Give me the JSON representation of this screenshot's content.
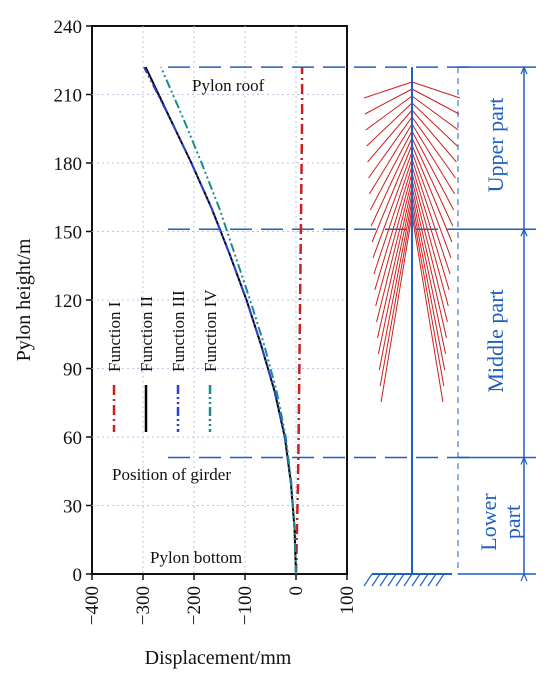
{
  "chart_data": {
    "type": "line",
    "xlabel": "Displacement/mm",
    "ylabel": "Pylon height/m",
    "xlim": [
      -400,
      100
    ],
    "ylim": [
      0,
      240
    ],
    "x_ticks": [
      "−400",
      "−300",
      "−200",
      "−100",
      "0",
      "100"
    ],
    "y_ticks": [
      "0",
      "30",
      "60",
      "90",
      "120",
      "150",
      "180",
      "210",
      "240"
    ],
    "x_tick_values": [
      -400,
      -300,
      -200,
      -100,
      0,
      100
    ],
    "y_tick_values": [
      0,
      30,
      60,
      90,
      120,
      150,
      180,
      210,
      240
    ],
    "grid": true,
    "legend_position": "left-middle, vertical text",
    "annotations": {
      "roof": "Pylon roof",
      "girder": "Position of girder",
      "bottom": "Pylon bottom"
    },
    "reference_heights": [
      222,
      151,
      51
    ],
    "series": [
      {
        "name": "Function I",
        "color": "#cc1f1f",
        "style": "dash-dot",
        "points": [
          [
            0,
            0
          ],
          [
            2,
            20
          ],
          [
            4,
            40
          ],
          [
            5,
            60
          ],
          [
            6,
            80
          ],
          [
            7,
            100
          ],
          [
            8,
            120
          ],
          [
            9,
            140
          ],
          [
            10,
            160
          ],
          [
            11,
            180
          ],
          [
            12,
            200
          ],
          [
            12,
            222
          ]
        ]
      },
      {
        "name": "Function II",
        "color": "#000000",
        "style": "solid",
        "points": [
          [
            0,
            0
          ],
          [
            -3,
            20
          ],
          [
            -10,
            40
          ],
          [
            -22,
            60
          ],
          [
            -42,
            80
          ],
          [
            -68,
            100
          ],
          [
            -97,
            120
          ],
          [
            -130,
            140
          ],
          [
            -165,
            160
          ],
          [
            -205,
            180
          ],
          [
            -248,
            200
          ],
          [
            -295,
            222
          ]
        ]
      },
      {
        "name": "Function III",
        "color": "#2b3fd6",
        "style": "dash-dot-dot",
        "points": [
          [
            0,
            0
          ],
          [
            -3,
            20
          ],
          [
            -10,
            40
          ],
          [
            -22,
            60
          ],
          [
            -42,
            80
          ],
          [
            -68,
            100
          ],
          [
            -97,
            120
          ],
          [
            -130,
            140
          ],
          [
            -165,
            160
          ],
          [
            -205,
            180
          ],
          [
            -248,
            200
          ],
          [
            -298,
            222
          ]
        ]
      },
      {
        "name": "Function IV",
        "color": "#1a8c8c",
        "style": "dash-dot-dot",
        "points": [
          [
            0,
            0
          ],
          [
            -3,
            20
          ],
          [
            -9,
            40
          ],
          [
            -20,
            60
          ],
          [
            -38,
            80
          ],
          [
            -62,
            100
          ],
          [
            -90,
            120
          ],
          [
            -120,
            140
          ],
          [
            -150,
            160
          ],
          [
            -185,
            180
          ],
          [
            -222,
            200
          ],
          [
            -265,
            222
          ]
        ]
      }
    ],
    "parts": [
      {
        "label": "Upper part"
      },
      {
        "label": "Middle part"
      },
      {
        "label": "Lower part"
      }
    ],
    "colors": {
      "blue_lines": "#1f5fbf",
      "cables": "#cc1f1f",
      "grid": "#b8c7e6"
    }
  }
}
